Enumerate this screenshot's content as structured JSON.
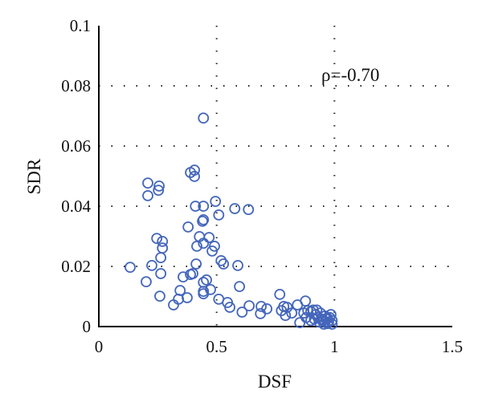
{
  "chart_data": {
    "type": "scatter",
    "title": "",
    "xlabel": "DSF",
    "ylabel": "SDR",
    "xlim": [
      0,
      1.5
    ],
    "ylim": [
      0,
      0.1
    ],
    "xticks": [
      "0",
      "0.5",
      "1",
      "1.5"
    ],
    "yticks": [
      "0",
      "0.02",
      "0.04",
      "0.06",
      "0.08",
      "0.1"
    ],
    "xtick_values": [
      0,
      0.5,
      1,
      1.5
    ],
    "ytick_values": [
      0,
      0.02,
      0.04,
      0.06,
      0.08,
      0.1
    ],
    "grid": "dotted",
    "annotation": "ρ=-0.70",
    "marker_color": "#4466bb",
    "points": [
      [
        0.444,
        0.0693
      ],
      [
        0.389,
        0.0512
      ],
      [
        0.406,
        0.052
      ],
      [
        0.406,
        0.0499
      ],
      [
        0.208,
        0.0477
      ],
      [
        0.256,
        0.0467
      ],
      [
        0.253,
        0.0453
      ],
      [
        0.208,
        0.0435
      ],
      [
        0.41,
        0.04
      ],
      [
        0.444,
        0.04
      ],
      [
        0.495,
        0.0416
      ],
      [
        0.509,
        0.0371
      ],
      [
        0.577,
        0.0392
      ],
      [
        0.635,
        0.0389
      ],
      [
        0.44,
        0.035
      ],
      [
        0.444,
        0.0355
      ],
      [
        0.379,
        0.0331
      ],
      [
        0.246,
        0.0293
      ],
      [
        0.27,
        0.0283
      ],
      [
        0.27,
        0.0261
      ],
      [
        0.263,
        0.0229
      ],
      [
        0.427,
        0.0299
      ],
      [
        0.468,
        0.0296
      ],
      [
        0.444,
        0.0277
      ],
      [
        0.416,
        0.0267
      ],
      [
        0.491,
        0.0267
      ],
      [
        0.481,
        0.0251
      ],
      [
        0.519,
        0.0219
      ],
      [
        0.529,
        0.0208
      ],
      [
        0.59,
        0.0203
      ],
      [
        0.133,
        0.0197
      ],
      [
        0.225,
        0.0203
      ],
      [
        0.263,
        0.0176
      ],
      [
        0.413,
        0.0208
      ],
      [
        0.201,
        0.0149
      ],
      [
        0.358,
        0.0165
      ],
      [
        0.389,
        0.0173
      ],
      [
        0.399,
        0.0176
      ],
      [
        0.457,
        0.0155
      ],
      [
        0.444,
        0.0147
      ],
      [
        0.597,
        0.0133
      ],
      [
        0.259,
        0.0101
      ],
      [
        0.345,
        0.012
      ],
      [
        0.338,
        0.0091
      ],
      [
        0.317,
        0.0072
      ],
      [
        0.375,
        0.0096
      ],
      [
        0.444,
        0.0117
      ],
      [
        0.444,
        0.0109
      ],
      [
        0.474,
        0.0123
      ],
      [
        0.509,
        0.0091
      ],
      [
        0.546,
        0.008
      ],
      [
        0.556,
        0.0064
      ],
      [
        0.608,
        0.0048
      ],
      [
        0.638,
        0.0069
      ],
      [
        0.689,
        0.0067
      ],
      [
        0.686,
        0.0043
      ],
      [
        0.713,
        0.0059
      ],
      [
        0.768,
        0.0107
      ],
      [
        0.775,
        0.0053
      ],
      [
        0.785,
        0.0067
      ],
      [
        0.799,
        0.0064
      ],
      [
        0.877,
        0.0085
      ],
      [
        0.843,
        0.0072
      ],
      [
        0.819,
        0.0045
      ],
      [
        0.853,
        0.0013
      ],
      [
        0.792,
        0.0037
      ],
      [
        0.887,
        0.0053
      ],
      [
        0.9,
        0.005
      ],
      [
        0.91,
        0.0055
      ],
      [
        0.92,
        0.004
      ],
      [
        0.93,
        0.003
      ],
      [
        0.94,
        0.0045
      ],
      [
        0.95,
        0.002
      ],
      [
        0.96,
        0.0035
      ],
      [
        0.97,
        0.001
      ],
      [
        0.98,
        0.003
      ],
      [
        0.99,
        0.002
      ],
      [
        0.9,
        0.002
      ],
      [
        0.915,
        0.0025
      ],
      [
        0.935,
        0.0015
      ],
      [
        0.955,
        0.0008
      ],
      [
        0.965,
        0.0025
      ],
      [
        0.975,
        0.0015
      ],
      [
        0.985,
        0.004
      ],
      [
        0.88,
        0.003
      ],
      [
        0.925,
        0.0055
      ],
      [
        0.945,
        0.0025
      ],
      [
        0.96,
        0.0015
      ],
      [
        0.97,
        0.0028
      ],
      [
        0.99,
        0.0008
      ],
      [
        0.87,
        0.0045
      ]
    ]
  }
}
